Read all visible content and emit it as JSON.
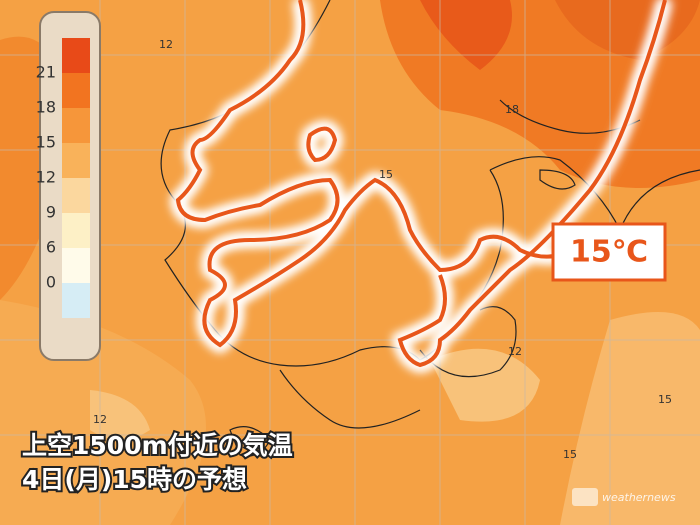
{
  "legend": {
    "colors": [
      "#e84a18",
      "#f27420",
      "#f6963a",
      "#f9b25a",
      "#fbd79e",
      "#fdf0c6",
      "#fffbea",
      "#d6edf5"
    ],
    "labels": [
      "21",
      "18",
      "15",
      "12",
      "9",
      "6",
      "0"
    ]
  },
  "contour_labels": [
    "12",
    "18",
    "15",
    "12",
    "12",
    "15",
    "15"
  ],
  "callout": "15℃",
  "caption": {
    "line1": "上空1500m付近の気温",
    "line2": "4日(月)15時の予想"
  },
  "logo": "weathernews"
}
